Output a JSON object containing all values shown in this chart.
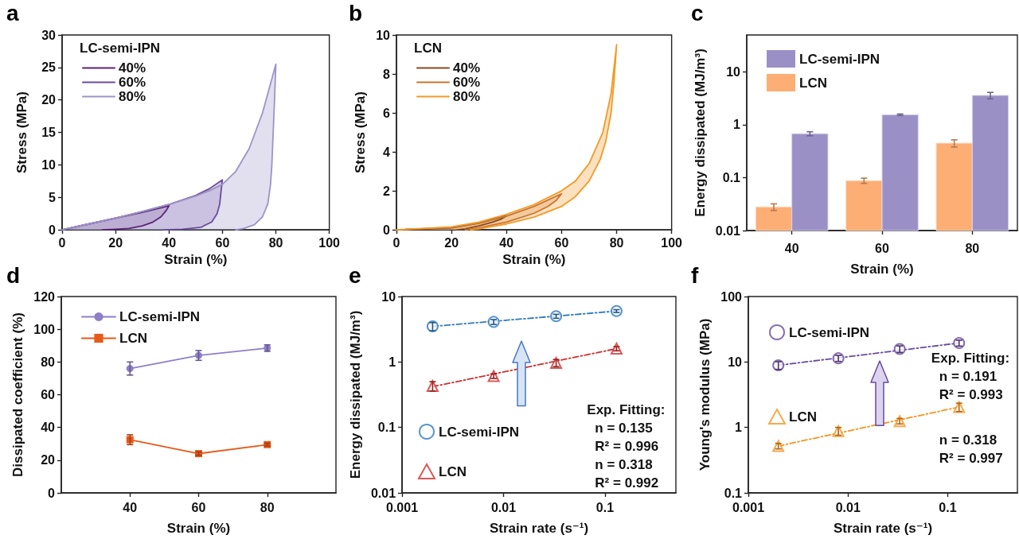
{
  "chart_data": [
    {
      "type": "area",
      "title": "a",
      "xlabel": "Strain (%)",
      "ylabel": "Stress (MPa)",
      "legend_title": "LC-semi-IPN",
      "legend": "top left",
      "xlim": [
        0,
        100
      ],
      "xticks": [
        0,
        20,
        40,
        60,
        80,
        100
      ],
      "ylim": [
        0,
        30
      ],
      "yticks": [
        0,
        5,
        10,
        15,
        20,
        25,
        30
      ],
      "series": [
        {
          "name": "40%",
          "color": "#5b2477",
          "x": [
            0,
            10,
            20,
            30,
            40,
            39,
            37,
            34,
            30,
            25,
            20,
            15
          ],
          "values": [
            0,
            0.9,
            1.8,
            2.7,
            3.7,
            3,
            2,
            1.2,
            0.6,
            0.2,
            0.1,
            0
          ]
        },
        {
          "name": "60%",
          "color": "#6b4b9e",
          "x": [
            0,
            10,
            20,
            30,
            40,
            50,
            55,
            60,
            59.5,
            59,
            58,
            56,
            52,
            45,
            38
          ],
          "values": [
            0,
            0.9,
            1.8,
            2.8,
            3.9,
            5.3,
            6.3,
            7.7,
            6,
            4,
            2.5,
            1.2,
            0.4,
            0.1,
            0
          ]
        },
        {
          "name": "80%",
          "color": "#9d93c8",
          "x": [
            0,
            10,
            20,
            30,
            40,
            50,
            55,
            60,
            65,
            70,
            75,
            78,
            80,
            79.5,
            79,
            78.5,
            78,
            77,
            75,
            72,
            68,
            65
          ],
          "values": [
            0,
            0.9,
            1.8,
            2.8,
            3.9,
            5.2,
            6,
            7,
            9,
            12.5,
            18,
            22.5,
            25.5,
            20,
            15,
            10,
            7,
            4,
            2,
            0.8,
            0.2,
            0
          ]
        }
      ]
    },
    {
      "type": "area",
      "title": "b",
      "xlabel": "Strain (%)",
      "ylabel": "Stress (MPa)",
      "legend_title": "LCN",
      "legend": "top left",
      "xlim": [
        0,
        100
      ],
      "xticks": [
        0,
        20,
        40,
        60,
        80,
        100
      ],
      "ylim": [
        0,
        10
      ],
      "yticks": [
        0,
        2,
        4,
        6,
        8,
        10
      ],
      "series": [
        {
          "name": "40%",
          "color": "#8b4a1c",
          "x": [
            0,
            20,
            30,
            40,
            38,
            35,
            30,
            25,
            22
          ],
          "values": [
            0,
            0.1,
            0.35,
            0.72,
            0.55,
            0.4,
            0.2,
            0.05,
            0
          ]
        },
        {
          "name": "60%",
          "color": "#c87532",
          "x": [
            0,
            20,
            30,
            40,
            50,
            60,
            58,
            55,
            50,
            40,
            30,
            25
          ],
          "values": [
            0,
            0.12,
            0.35,
            0.7,
            1.2,
            1.85,
            1.5,
            1.2,
            0.85,
            0.4,
            0.1,
            0
          ]
        },
        {
          "name": "80%",
          "color": "#f39a26",
          "x": [
            0,
            20,
            30,
            40,
            50,
            60,
            65,
            70,
            75,
            78,
            80,
            79,
            78,
            76,
            74,
            70,
            65,
            60,
            50,
            40,
            30,
            27
          ],
          "values": [
            0,
            0.15,
            0.4,
            0.8,
            1.3,
            2,
            2.5,
            3.4,
            5,
            7,
            9.5,
            7.5,
            6,
            4.5,
            3.6,
            2.5,
            1.7,
            1.2,
            0.65,
            0.3,
            0.05,
            0
          ]
        }
      ]
    },
    {
      "type": "bar",
      "title": "c",
      "xlabel": "Strain (%)",
      "ylabel": "Energy dissipated (MJ/m³)",
      "legend": "top left",
      "log": true,
      "categories": [
        "40",
        "60",
        "80"
      ],
      "ylim": [
        0.01,
        50
      ],
      "yticks": [
        0.01,
        0.1,
        1,
        10
      ],
      "series": [
        {
          "name": "LCN",
          "color": "#fdae74",
          "values": [
            0.028,
            0.088,
            0.45
          ],
          "errors": [
            0.004,
            0.01,
            0.07
          ]
        },
        {
          "name": "LC-semi-IPN",
          "color": "#9b90c6",
          "values": [
            0.68,
            1.55,
            3.6
          ],
          "errors": [
            0.06,
            0.05,
            0.5
          ]
        }
      ]
    },
    {
      "type": "line",
      "title": "d",
      "xlabel": "Strain (%)",
      "ylabel": "Dissipated coefficient (%)",
      "legend": "top left",
      "x": [
        40,
        60,
        80
      ],
      "xlim": [
        20,
        100
      ],
      "xticks": [
        40,
        60,
        80
      ],
      "ylim": [
        0,
        120
      ],
      "yticks": [
        0,
        20,
        40,
        60,
        80,
        100,
        120
      ],
      "series": [
        {
          "name": "LC-semi-IPN",
          "color": "#8f7fc8",
          "marker": "circle",
          "values": [
            76,
            84,
            88.5
          ],
          "errors": [
            4,
            3,
            2
          ]
        },
        {
          "name": "LCN",
          "color": "#e8591a",
          "marker": "square",
          "values": [
            32.5,
            24,
            29.5
          ],
          "errors": [
            3,
            1,
            0.8
          ]
        }
      ]
    },
    {
      "type": "scatter",
      "title": "e",
      "xlabel": "Strain rate (s⁻¹)",
      "ylabel": "Energy dissipated (MJ/m³)",
      "legend": "bottom left",
      "log": "xy",
      "xlim": [
        0.001,
        0.5
      ],
      "xticks": [
        0.001,
        0.01,
        0.1
      ],
      "ylim": [
        0.01,
        10
      ],
      "yticks": [
        0.01,
        0.1,
        1,
        10
      ],
      "annotations": [
        "Exp. Fitting:",
        "n = 0.135",
        "R² = 0.996",
        "n = 0.318",
        "R² = 0.992"
      ],
      "series": [
        {
          "name": "LC-semi-IPN",
          "color": "#2f7bbf",
          "marker": "circle",
          "x": [
            0.002,
            0.008,
            0.033,
            0.13
          ],
          "values": [
            3.5,
            4.1,
            5.0,
            6.0
          ],
          "errors": [
            0.5,
            0.35,
            0.35,
            0.3
          ]
        },
        {
          "type": "line",
          "color": "#2f7bbf",
          "marker": "none",
          "line_style": "dashed",
          "x": [
            0.002,
            0.13
          ],
          "values": [
            3.5,
            6.0
          ]
        },
        {
          "name": "LCN",
          "color": "#d0302f",
          "marker": "triangle",
          "x": [
            0.002,
            0.008,
            0.033,
            0.13
          ],
          "values": [
            0.43,
            0.61,
            0.97,
            1.6
          ],
          "errors": [
            0.07,
            0.05,
            0.12,
            0.12
          ]
        },
        {
          "type": "line",
          "color": "#d0302f",
          "marker": "none",
          "line_style": "dashed",
          "x": [
            0.002,
            0.13
          ],
          "values": [
            0.42,
            1.6
          ]
        }
      ]
    },
    {
      "type": "scatter",
      "title": "f",
      "xlabel": "Strain rate (s⁻¹)",
      "ylabel": "Young's modulus (MPa)",
      "legend": "top left",
      "log": "xy",
      "xlim": [
        0.001,
        0.5
      ],
      "xticks": [
        0.001,
        0.01,
        0.1
      ],
      "ylim": [
        0.1,
        100
      ],
      "yticks": [
        0.1,
        1,
        10,
        100
      ],
      "annotations": [
        "Exp. Fitting:",
        "n = 0.191",
        "R² = 0.993",
        "n = 0.318",
        "R² = 0.997"
      ],
      "series": [
        {
          "name": "LC-semi-IPN",
          "color": "#6a4a9c",
          "marker": "circle",
          "x": [
            0.002,
            0.008,
            0.033,
            0.13
          ],
          "values": [
            8.9,
            11.4,
            15.8,
            19.5
          ],
          "errors": [
            1.2,
            1.2,
            1.8,
            2
          ]
        },
        {
          "type": "line",
          "color": "#6a4a9c",
          "marker": "none",
          "line_style": "dashed",
          "x": [
            0.002,
            0.13
          ],
          "values": [
            8.9,
            19.5
          ]
        },
        {
          "name": "LCN",
          "color": "#f7931e",
          "marker": "triangle",
          "x": [
            0.002,
            0.008,
            0.033,
            0.13
          ],
          "values": [
            0.52,
            0.88,
            1.25,
            2.05
          ],
          "errors": [
            0.05,
            0.12,
            0.12,
            0.3
          ]
        },
        {
          "type": "line",
          "color": "#f7931e",
          "marker": "none",
          "line_style": "dashed",
          "x": [
            0.002,
            0.13
          ],
          "values": [
            0.52,
            2.05
          ]
        }
      ]
    }
  ]
}
